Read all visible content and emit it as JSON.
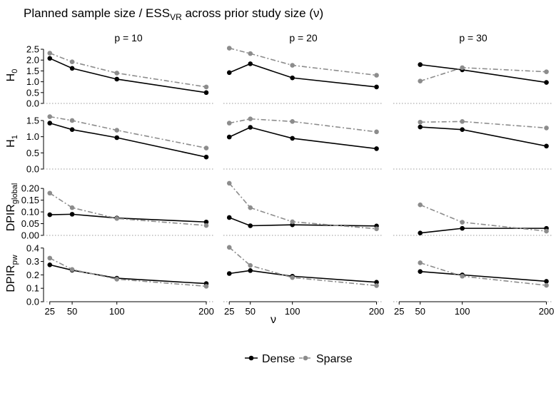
{
  "chart_data": {
    "type": "line",
    "title": {
      "main": "Planned sample size / ESS",
      "sub": "VR",
      "tail": " across prior study size (ν)"
    },
    "xlabel": "ν",
    "x": [
      25,
      50,
      100,
      200
    ],
    "xticks": [
      "25",
      "50",
      "100",
      "200"
    ],
    "xlim": [
      18,
      208
    ],
    "columns": [
      "p = 10",
      "p = 20",
      "p = 30"
    ],
    "rows": [
      {
        "label": {
          "main": "H",
          "sub": "0"
        },
        "ylim": [
          0,
          2.6
        ],
        "yticks": [
          0,
          0.5,
          1.0,
          1.5,
          2.0,
          2.5
        ],
        "ytick_labels": [
          "0.0",
          "0.5",
          "1.0",
          "1.5",
          "2.0",
          "2.5"
        ]
      },
      {
        "label": {
          "main": "H",
          "sub": "1"
        },
        "ylim": [
          0,
          1.72
        ],
        "yticks": [
          0,
          0.5,
          1.0,
          1.5
        ],
        "ytick_labels": [
          "0.0",
          "0.5",
          "1.0",
          "1.5"
        ]
      },
      {
        "label": {
          "main": "DPIR",
          "sub": "global"
        },
        "ylim": [
          0,
          0.24
        ],
        "yticks": [
          0,
          0.05,
          0.1,
          0.15,
          0.2
        ],
        "ytick_labels": [
          "0.00",
          "0.05",
          "0.10",
          "0.15",
          "0.20"
        ]
      },
      {
        "label": {
          "main": "DPIR",
          "sub": "pw"
        },
        "ylim": [
          0,
          0.42
        ],
        "yticks": [
          0,
          0.1,
          0.2,
          0.3,
          0.4
        ],
        "ytick_labels": [
          "0.0",
          "0.1",
          "0.2",
          "0.3",
          "0.4"
        ]
      }
    ],
    "series": [
      {
        "name": "Dense",
        "color": "#000000",
        "dash": "solid",
        "values": [
          [
            [
              2.08,
              1.62,
              1.12,
              0.5
            ],
            [
              1.42,
              1.83,
              1.18,
              0.76
            ],
            [
              null,
              1.79,
              1.55,
              0.97
            ]
          ],
          [
            [
              1.42,
              1.22,
              0.97,
              0.37
            ],
            [
              0.99,
              1.29,
              0.95,
              0.63
            ],
            [
              null,
              1.3,
              1.22,
              0.71
            ]
          ],
          [
            [
              0.088,
              0.09,
              0.074,
              0.057
            ],
            [
              0.076,
              0.041,
              0.045,
              0.04
            ],
            [
              null,
              0.01,
              0.03,
              0.03
            ]
          ],
          [
            [
              0.275,
              0.235,
              0.175,
              0.135
            ],
            [
              0.21,
              0.232,
              0.19,
              0.145
            ],
            [
              null,
              0.225,
              0.2,
              0.152
            ]
          ]
        ]
      },
      {
        "name": "Sparse",
        "color": "#8c8c8c",
        "dash": "dashdot",
        "values": [
          [
            [
              2.32,
              1.92,
              1.4,
              0.76
            ],
            [
              2.55,
              2.3,
              1.76,
              1.3
            ],
            [
              null,
              1.03,
              1.65,
              1.46
            ]
          ],
          [
            [
              1.62,
              1.5,
              1.2,
              0.65
            ],
            [
              1.42,
              1.55,
              1.47,
              1.15
            ],
            [
              null,
              1.45,
              1.47,
              1.27
            ]
          ],
          [
            [
              0.18,
              0.118,
              0.072,
              0.042
            ],
            [
              0.222,
              0.118,
              0.058,
              0.028
            ],
            [
              null,
              0.13,
              0.056,
              0.018
            ]
          ],
          [
            [
              0.325,
              0.24,
              0.168,
              0.115
            ],
            [
              0.405,
              0.27,
              0.18,
              0.12
            ],
            [
              null,
              0.29,
              0.19,
              0.122
            ]
          ]
        ]
      }
    ],
    "grid": false,
    "legend_position": "bottom",
    "reference_line": "dotted at y = 0"
  }
}
